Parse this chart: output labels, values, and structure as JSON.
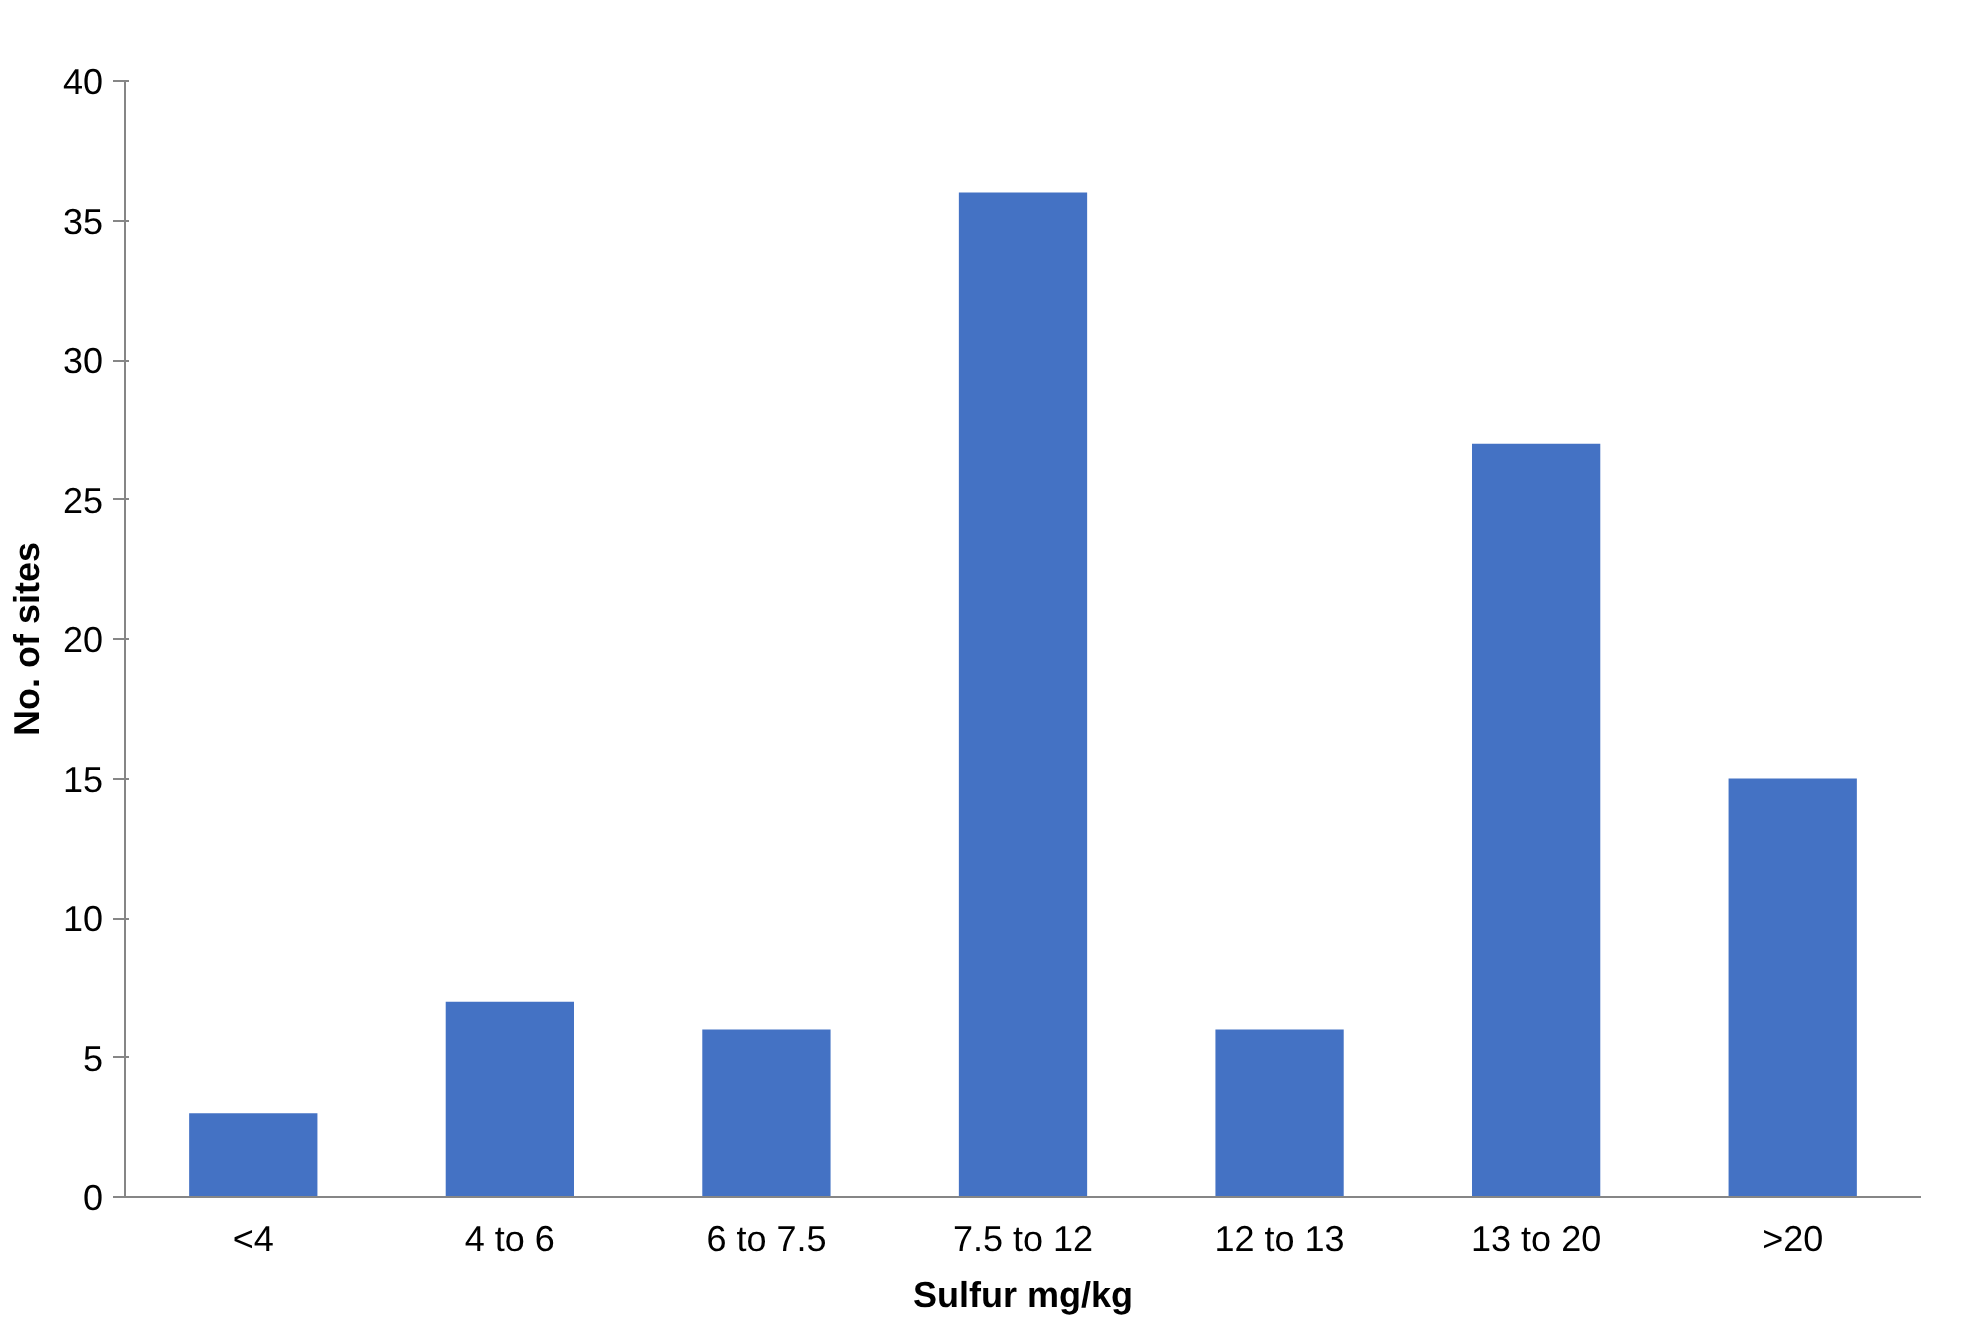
{
  "chart_data": {
    "type": "bar",
    "xlabel": "Sulfur mg/kg",
    "ylabel": "No. of sites",
    "categories": [
      "<4",
      "4 to 6",
      "6 to 7.5",
      "7.5 to 12",
      "12 to 13",
      "13 to 20",
      ">20"
    ],
    "values": [
      3,
      7,
      6,
      36,
      6,
      27,
      15
    ],
    "color": "#4472c4",
    "ylim": [
      0,
      40
    ],
    "yticks": [
      0,
      5,
      10,
      15,
      20,
      25,
      30,
      35,
      40
    ],
    "grid": false
  }
}
